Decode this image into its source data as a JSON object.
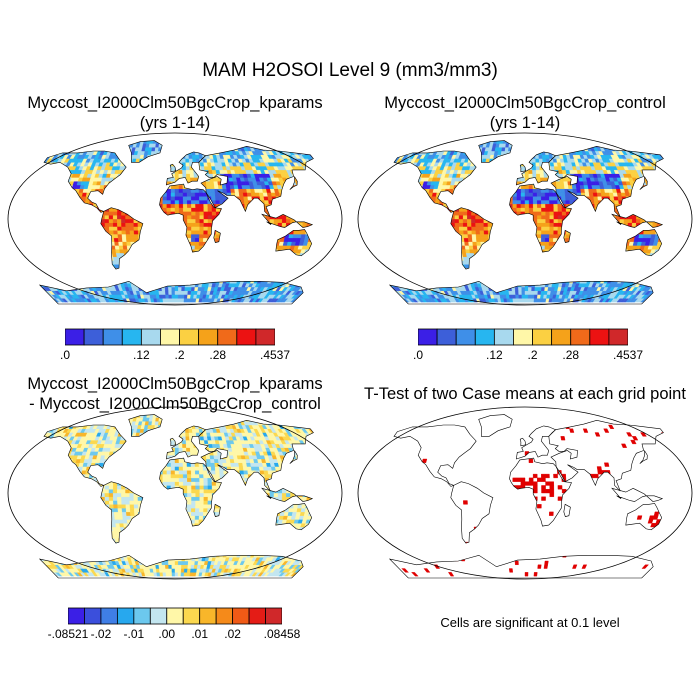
{
  "title": "MAM H2OSOI Level 9 (mm3/mm3)",
  "panels": {
    "kparams": {
      "line1": "Myccost_I2000Clm50BgcCrop_kparams",
      "line2": "(yrs 1-14)"
    },
    "control": {
      "line1": "Myccost_I2000Clm50BgcCrop_control",
      "line2": "(yrs 1-14)"
    },
    "diff": {
      "line1": "Myccost_I2000Clm50BgcCrop_kparams",
      "line2": "- Myccost_I2000Clm50BgcCrop_control"
    },
    "ttest": {
      "line1": "T-Test of two Case means at each grid point",
      "note": "Cells are significant at 0.1 level"
    }
  },
  "colorbars": {
    "mean": {
      "colors": [
        "#3b1fe6",
        "#3d5fd9",
        "#3f8fe8",
        "#27b6f0",
        "#a8d9ee",
        "#fff7a8",
        "#fbd042",
        "#f5a21a",
        "#f06a1a",
        "#ec1212",
        "#d0282a"
      ],
      "labels": [
        ".0",
        ".12",
        ".2",
        ".28",
        ".4537"
      ]
    },
    "diff": {
      "colors": [
        "#3b1fe6",
        "#3b4fdc",
        "#3f7ee6",
        "#27a8ee",
        "#6cc8ee",
        "#c3e6f0",
        "#fff7a8",
        "#fbd84f",
        "#f8b62a",
        "#f58a1a",
        "#f05a16",
        "#e41c16",
        "#d0282a"
      ],
      "labels": [
        "-.08521",
        "-.02",
        "-.01",
        ".00",
        ".01",
        ".02",
        ".08458"
      ]
    }
  },
  "legend_colors": {
    "land_outline": "#000000",
    "significant": "#e00000"
  }
}
